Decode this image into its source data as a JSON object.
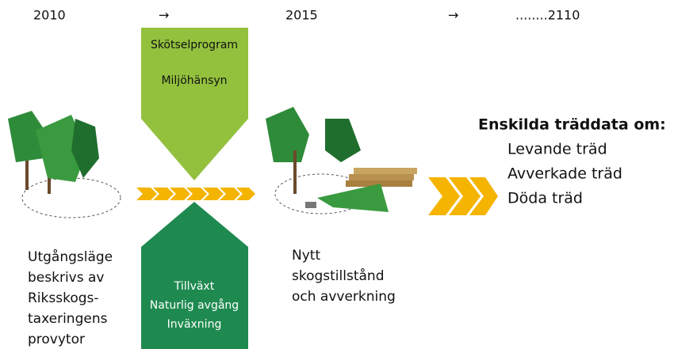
{
  "timeline": {
    "start": "2010",
    "arrow_1": "→",
    "middle": "2015",
    "arrow_2": "→",
    "end": "........2110"
  },
  "top_box": {
    "lines": [
      "Skötselprogram",
      "Miljöhänsyn"
    ]
  },
  "bottom_box": {
    "lines": [
      "Tillväxt",
      "Naturlig avgång",
      "Inväxning"
    ]
  },
  "left_caption": {
    "lines": [
      "Utgångsläge",
      "beskrivs av",
      "Riksskogs-",
      "taxeringens",
      "provytor"
    ]
  },
  "middle_caption": {
    "lines": [
      "Nytt",
      "skogstillstånd",
      "och avverkning"
    ]
  },
  "result": {
    "title": "Enskilda träddata om:",
    "items": [
      "Levande träd",
      "Avverkade träd",
      "Döda träd"
    ]
  }
}
